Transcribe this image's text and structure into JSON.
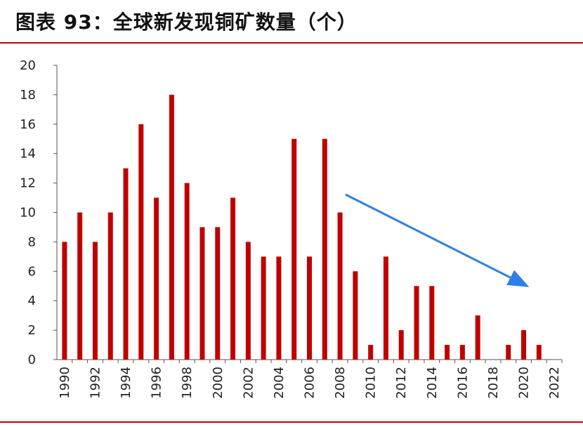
{
  "title": "图表 93：全球新发现铜矿数量（个）",
  "colors": {
    "bar": "#c00000",
    "rule": "#c0000e",
    "arrow": "#2f7fe8"
  },
  "chart_data": {
    "type": "bar",
    "title": "图表 93：全球新发现铜矿数量（个）",
    "xlabel": "",
    "ylabel": "",
    "ylim": [
      0,
      20
    ],
    "yticks": [
      0,
      2,
      4,
      6,
      8,
      10,
      12,
      14,
      16,
      18,
      20
    ],
    "x": [
      1990,
      1991,
      1992,
      1993,
      1994,
      1995,
      1996,
      1997,
      1998,
      1999,
      2000,
      2001,
      2002,
      2003,
      2004,
      2005,
      2006,
      2007,
      2008,
      2009,
      2010,
      2011,
      2012,
      2013,
      2014,
      2015,
      2016,
      2017,
      2018,
      2019,
      2020,
      2021,
      2022
    ],
    "values": [
      8,
      10,
      8,
      10,
      13,
      16,
      11,
      18,
      12,
      9,
      9,
      11,
      8,
      7,
      7,
      15,
      7,
      15,
      10,
      6,
      1,
      7,
      2,
      5,
      5,
      1,
      1,
      3,
      0,
      1,
      2,
      1,
      0
    ],
    "xtick_labels": [
      "1990",
      "1992",
      "1994",
      "1996",
      "1998",
      "2000",
      "2002",
      "2004",
      "2006",
      "2008",
      "2010",
      "2012",
      "2014",
      "2016",
      "2018",
      "2020",
      "2022"
    ],
    "grid": false,
    "legend": "none",
    "annotation": "downward trend arrow from 2008 to 2022"
  }
}
